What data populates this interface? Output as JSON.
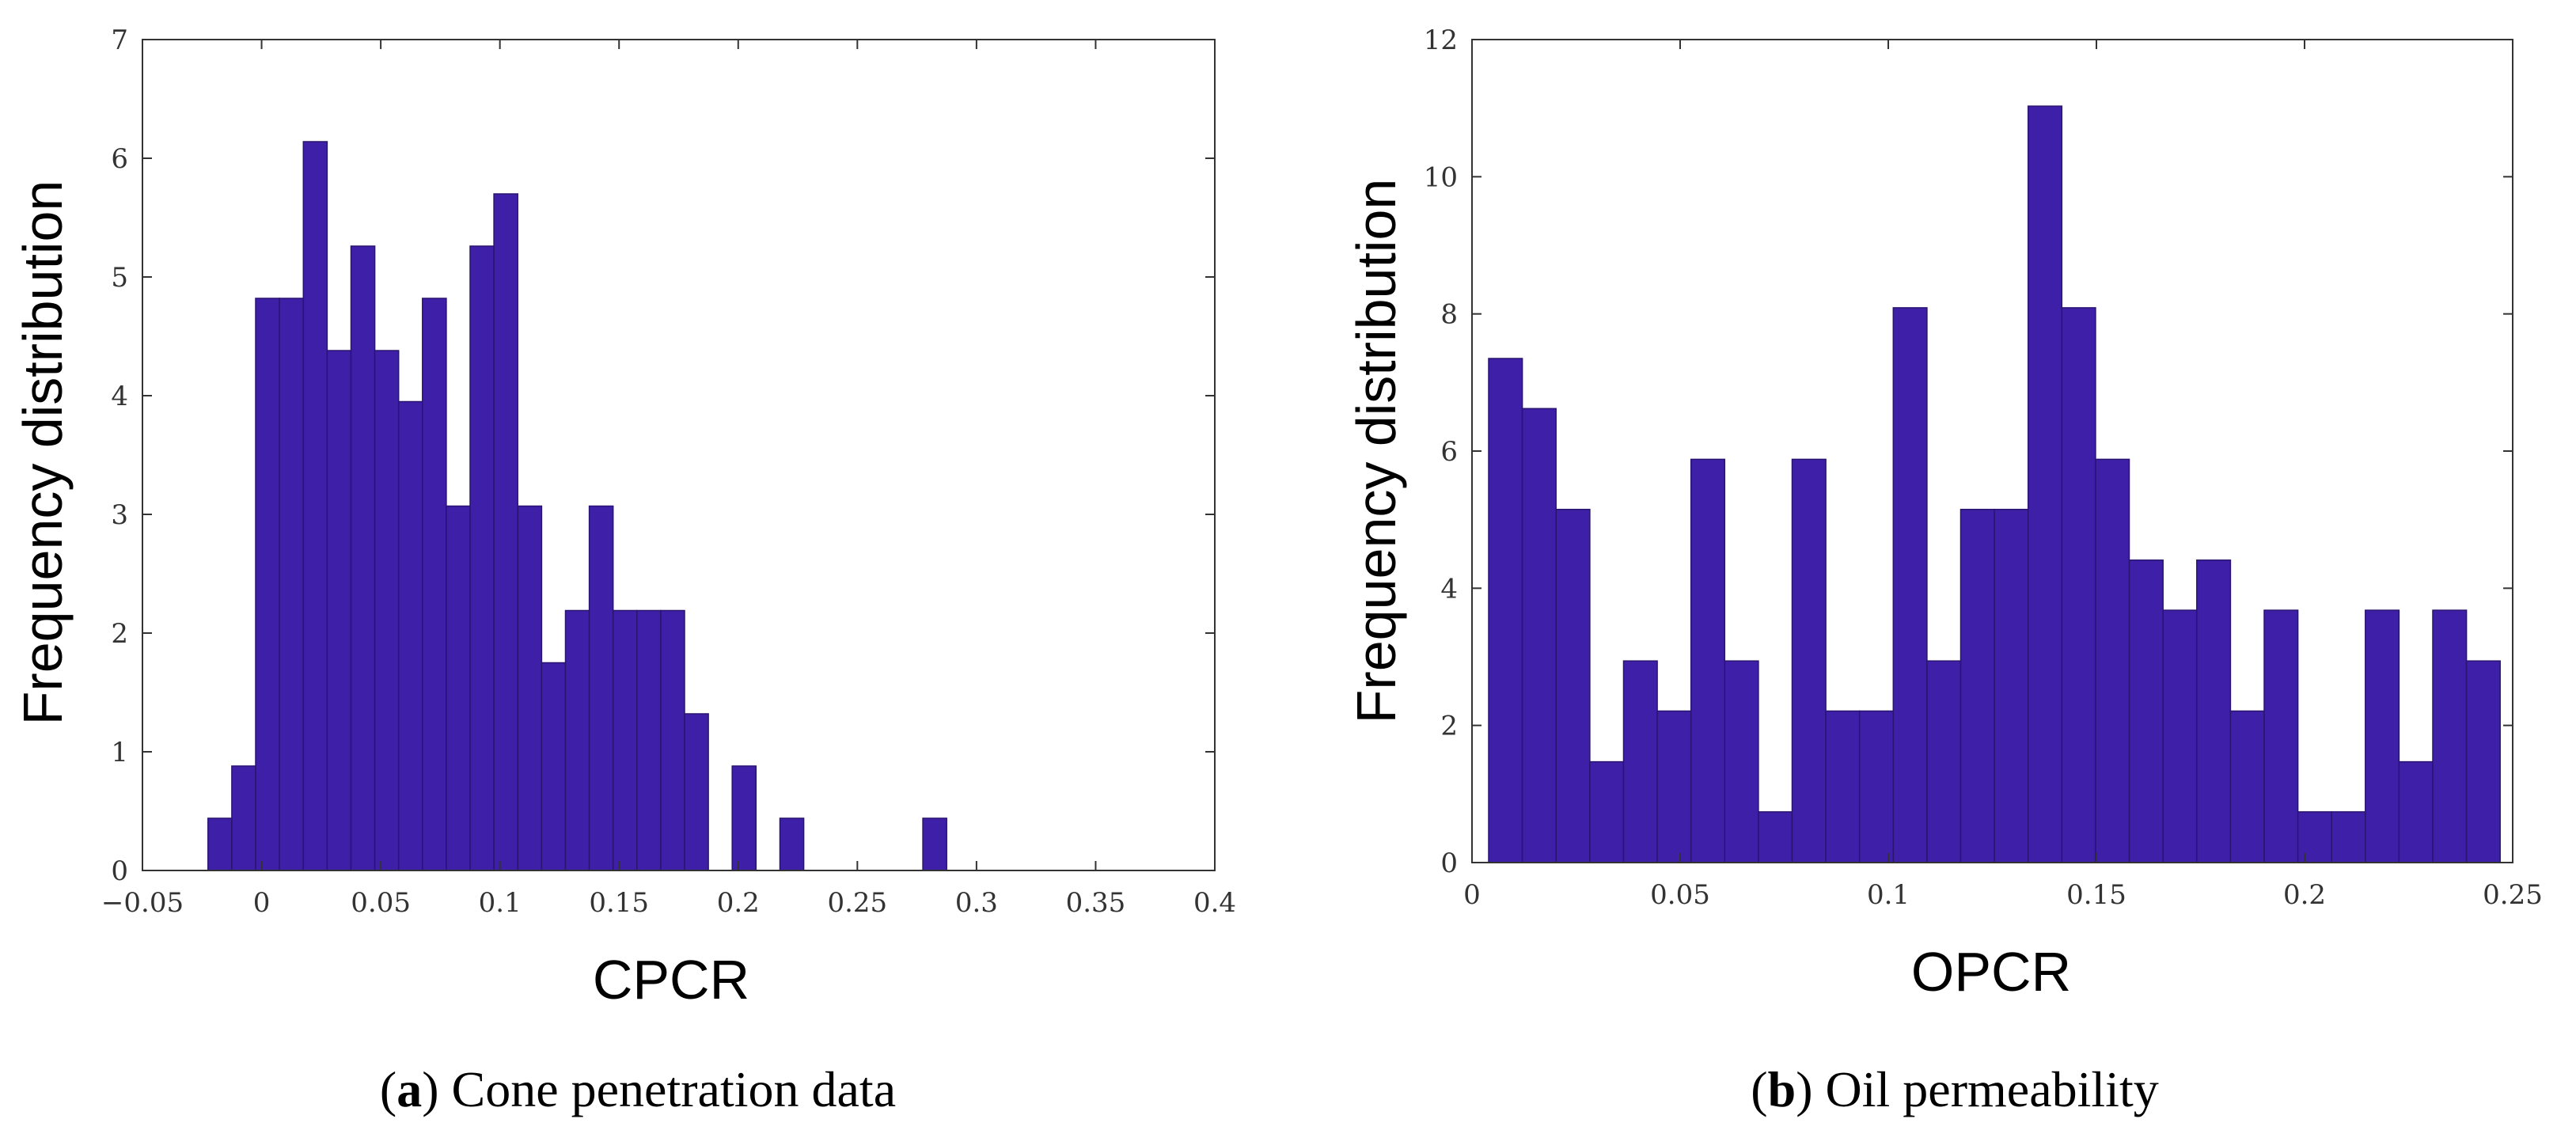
{
  "chart_data": [
    {
      "type": "bar",
      "panel": "a",
      "xlabel": "CPCR",
      "ylabel": "Frequency distribution",
      "xlim": [
        -0.05,
        0.4
      ],
      "ylim": [
        0,
        7
      ],
      "xticks": [
        -0.05,
        0,
        0.05,
        0.1,
        0.15,
        0.2,
        0.25,
        0.3,
        0.35,
        0.4
      ],
      "xtick_labels": [
        "−0.05",
        "0",
        "0.05",
        "0.1",
        "0.15",
        "0.2",
        "0.25",
        "0.3",
        "0.35",
        "0.4"
      ],
      "yticks": [
        0,
        1,
        2,
        3,
        4,
        5,
        6,
        7
      ],
      "ytick_labels": [
        "0",
        "1",
        "2",
        "3",
        "4",
        "5",
        "6",
        "7"
      ],
      "bin_start": -0.0225,
      "bin_width": 0.01,
      "values": [
        0.44,
        0.88,
        4.82,
        4.82,
        6.14,
        4.38,
        5.26,
        4.38,
        3.95,
        4.82,
        3.07,
        5.26,
        5.7,
        3.07,
        1.75,
        2.19,
        3.07,
        2.19,
        2.19,
        2.19,
        1.32,
        0,
        0.88,
        0,
        0.44,
        0,
        0,
        0,
        0,
        0,
        0.44
      ],
      "caption_label": "a",
      "caption_text": "Cone penetration data",
      "grid": false
    },
    {
      "type": "bar",
      "panel": "b",
      "xlabel": "OPCR",
      "ylabel": "Frequency distribution",
      "xlim": [
        0,
        0.25
      ],
      "ylim": [
        0,
        12
      ],
      "xticks": [
        0,
        0.05,
        0.1,
        0.15,
        0.2,
        0.25
      ],
      "xtick_labels": [
        "0",
        "0.05",
        "0.1",
        "0.15",
        "0.2",
        "0.25"
      ],
      "yticks": [
        0,
        2,
        4,
        6,
        8,
        10,
        12
      ],
      "ytick_labels": [
        "0",
        "2",
        "4",
        "6",
        "8",
        "10",
        "12"
      ],
      "bin_start": 0.004,
      "bin_width": 0.0081,
      "values": [
        7.35,
        6.62,
        5.15,
        1.47,
        2.94,
        2.21,
        5.88,
        2.94,
        0.74,
        5.88,
        2.21,
        2.21,
        8.09,
        2.94,
        5.15,
        5.15,
        11.03,
        8.09,
        5.88,
        4.41,
        3.68,
        4.41,
        2.21,
        3.68,
        0.74,
        0.74,
        3.68,
        1.47,
        3.68,
        2.94
      ],
      "caption_label": "b",
      "caption_text": "Oil permeability",
      "grid": false
    }
  ]
}
